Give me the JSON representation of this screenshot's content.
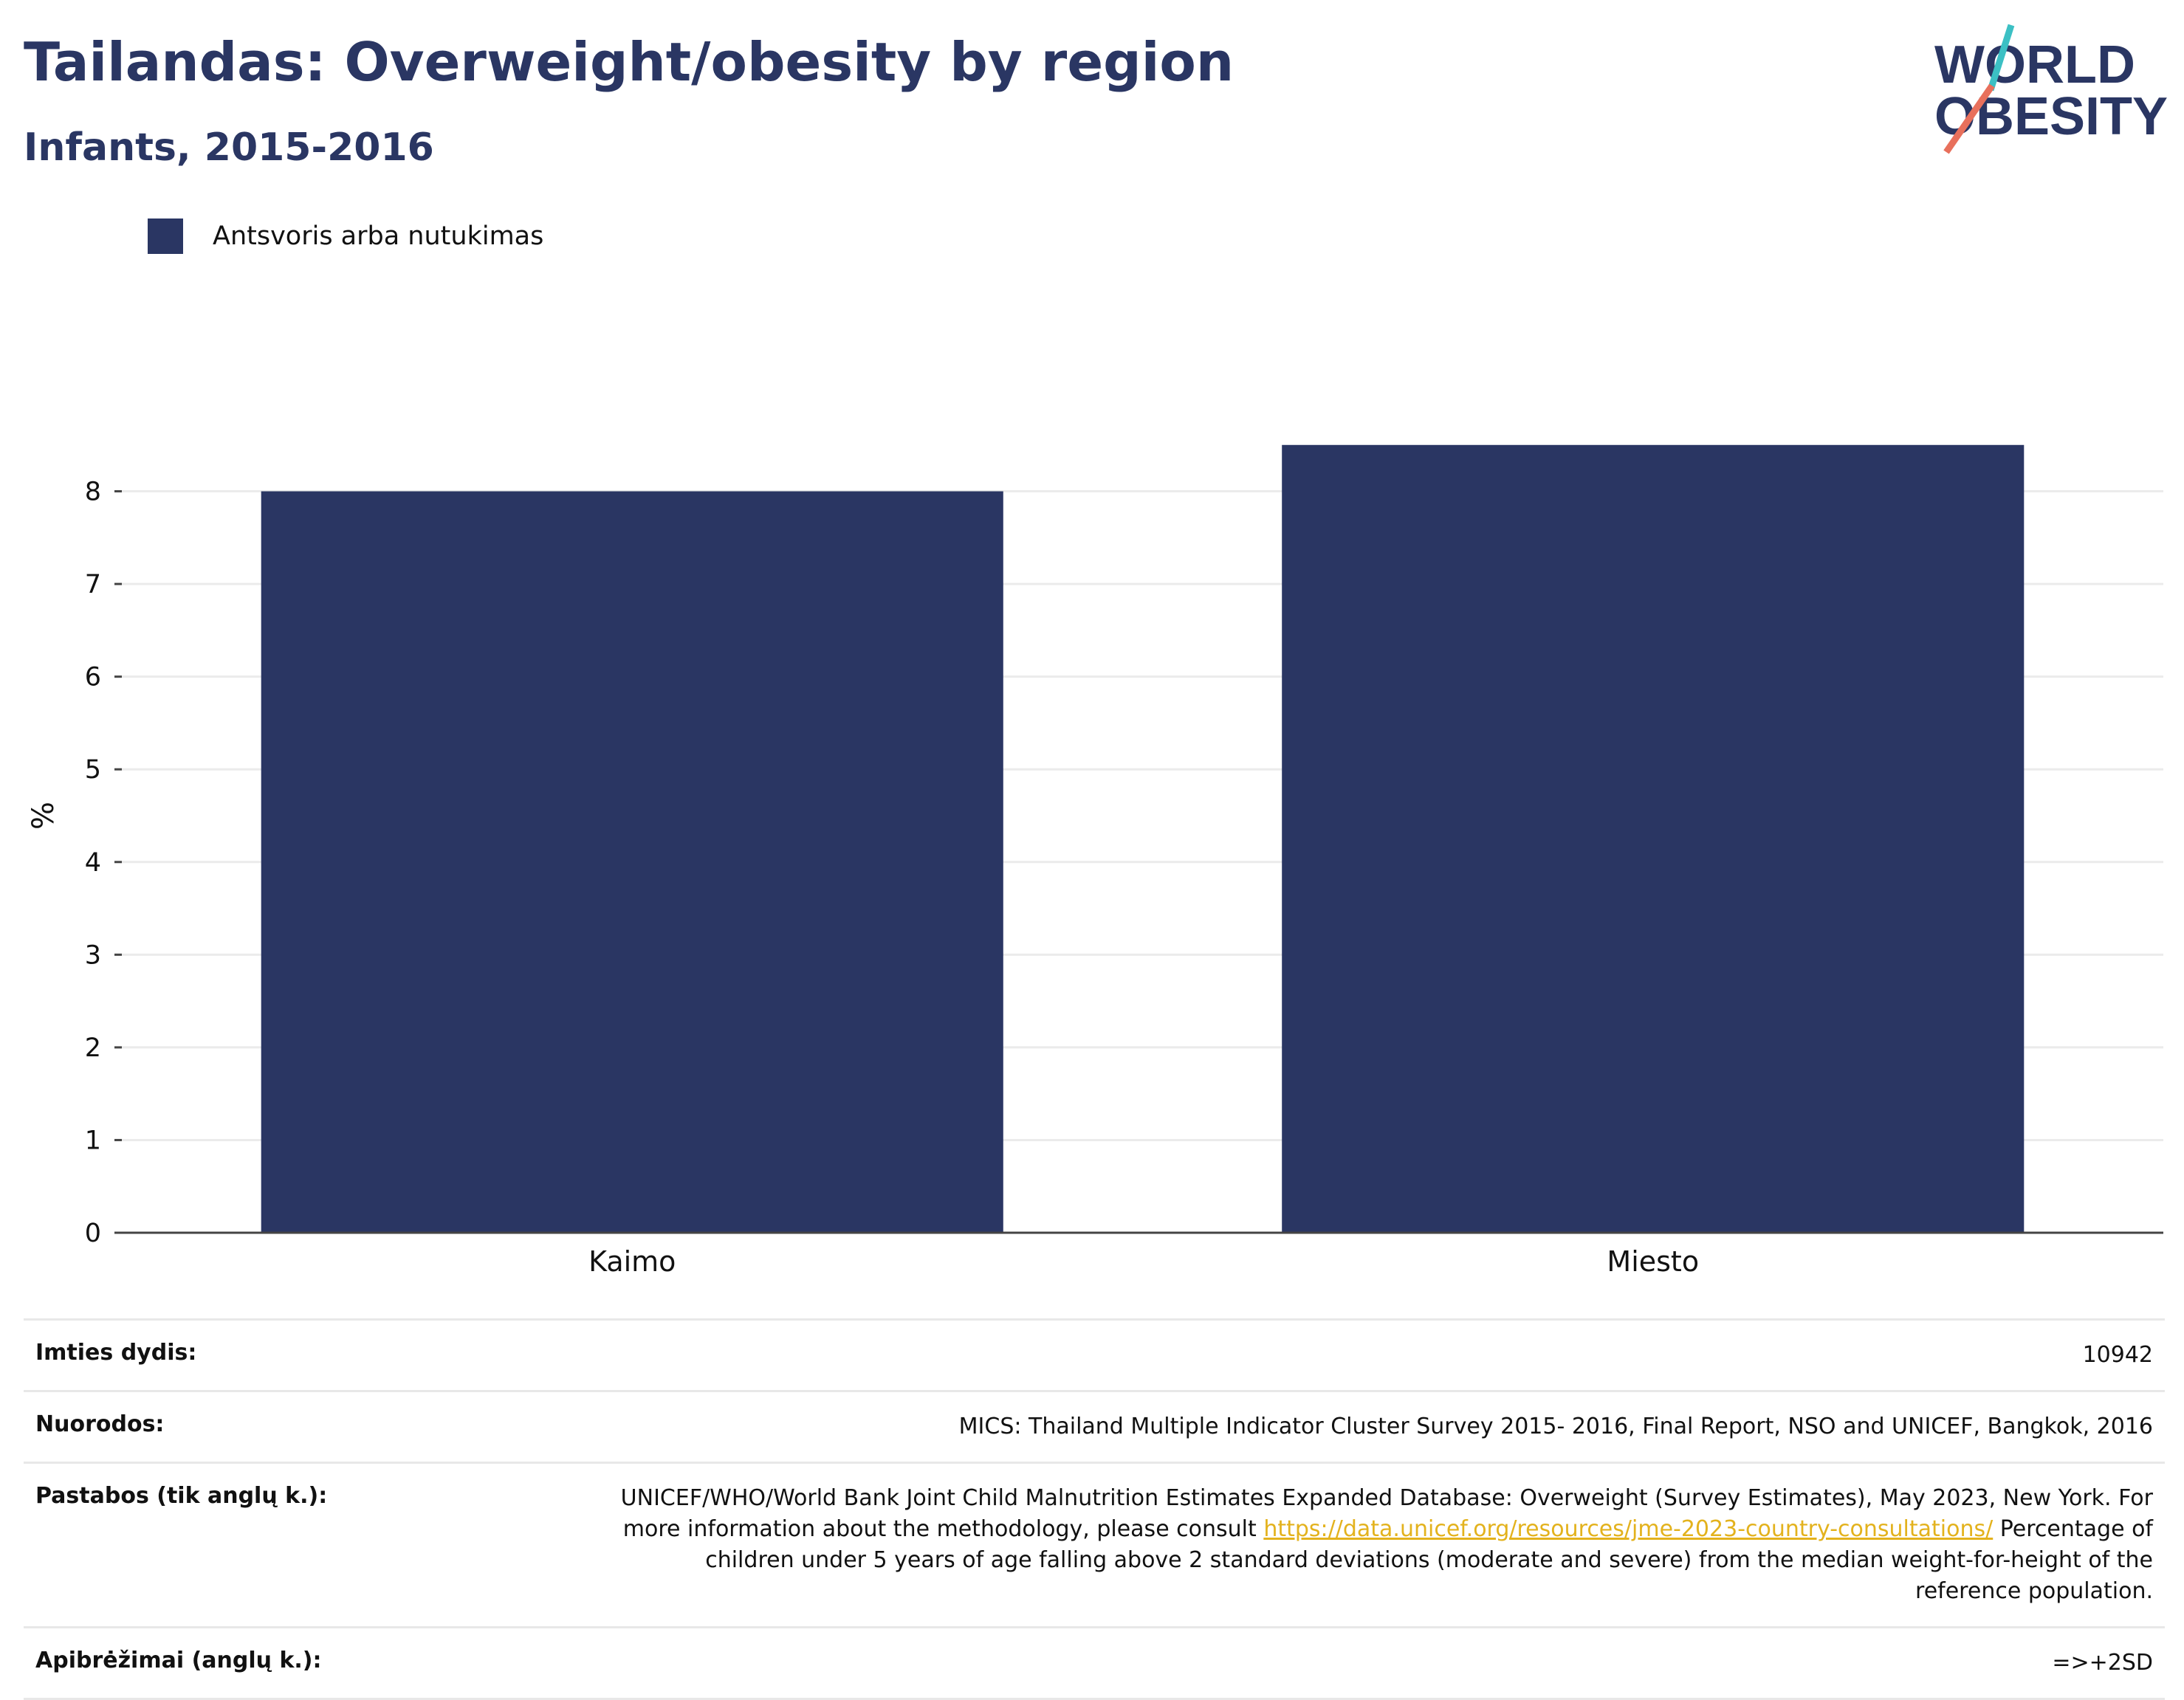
{
  "header": {
    "title": "Tailandas: Overweight/obesity by region",
    "subtitle": "Infants, 2015-2016"
  },
  "logo": {
    "line1": "WORLD",
    "line2": "OBESITY"
  },
  "colors": {
    "bar": "#2a3663",
    "title": "#2a3663",
    "grid": "#ebebeb",
    "link": "#e3b21d",
    "logo_teal": "#3cc0c4",
    "logo_coral": "#e8705c"
  },
  "chart_data": {
    "type": "bar",
    "categories": [
      "Kaimo",
      "Miesto"
    ],
    "series": [
      {
        "name": "Antsvoris arba nutukimas",
        "values": [
          8.0,
          8.5
        ]
      }
    ],
    "ylabel": "%",
    "ylim": [
      0,
      9
    ],
    "yticks": [
      0,
      1,
      2,
      3,
      4,
      5,
      6,
      7,
      8
    ],
    "grid": true,
    "legend": "top-left"
  },
  "info": {
    "sample_label": "Imties dydis:",
    "sample_value": "10942",
    "refs_label": "Nuorodos:",
    "refs_value": "MICS: Thailand Multiple Indicator Cluster Survey 2015- 2016, Final Report, NSO and UNICEF, Bangkok, 2016",
    "notes_label": "Pastabos (tik anglų k.):",
    "notes_text1": "UNICEF/WHO/World Bank Joint Child Malnutrition Estimates Expanded Database: Overweight (Survey Estimates), May 2023, New York. For more information about the methodology, please consult ",
    "notes_link": "https://data.unicef.org/resources/jme-2023-country-consultations/",
    "notes_text2": " Percentage of children under 5 years of age falling above 2 standard deviations (moderate and severe) from the median weight-for-height of the reference population.",
    "defs_label": "Apibrėžimai (anglų k.):",
    "defs_value": "=>+2SD"
  }
}
